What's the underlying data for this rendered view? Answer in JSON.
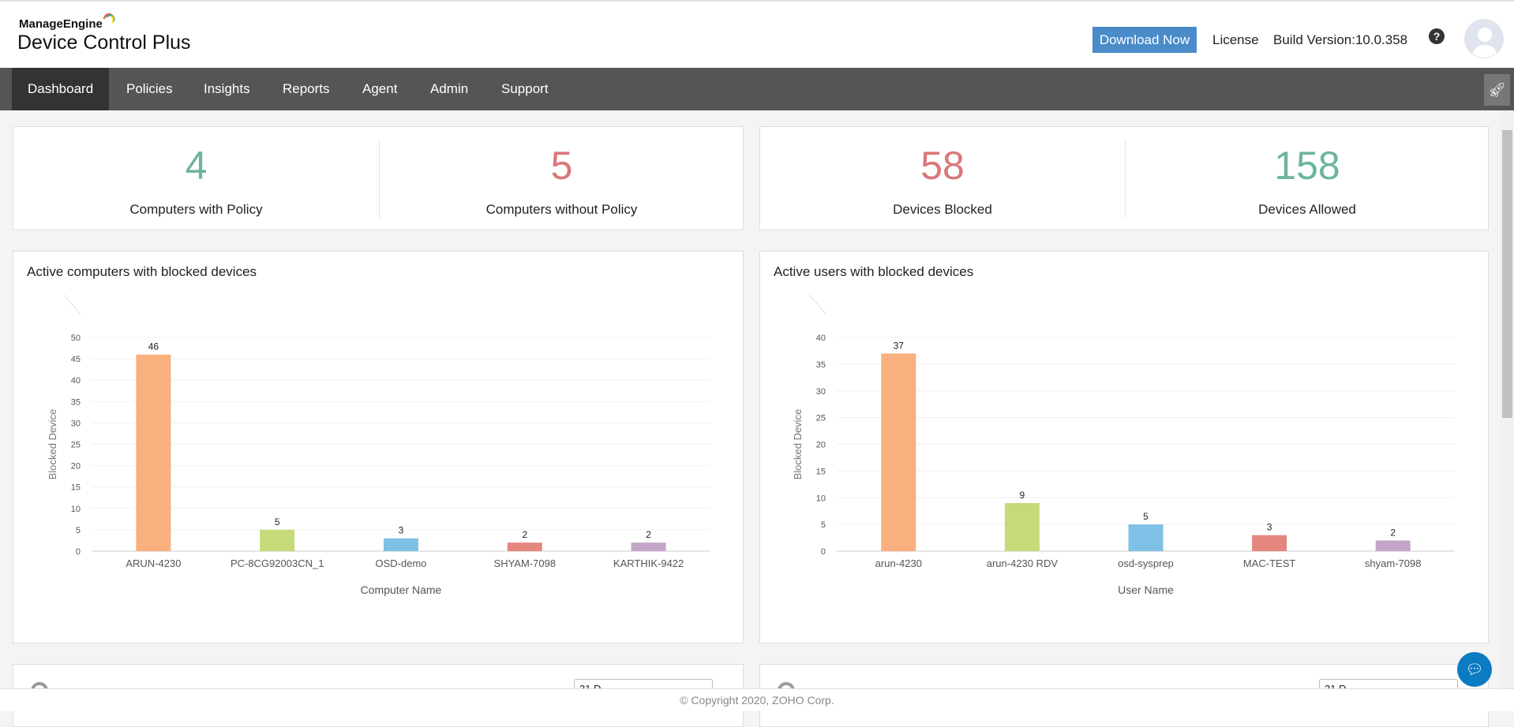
{
  "header": {
    "brand_top": "ManageEngine",
    "brand_product": "Device Control Plus",
    "download_label": "Download Now",
    "license_label": "License",
    "build_version": "Build Version:10.0.358",
    "help_icon": "question-circle-icon",
    "avatar_icon": "user-avatar-icon"
  },
  "nav": {
    "items": [
      {
        "label": "Dashboard",
        "active": true
      },
      {
        "label": "Policies"
      },
      {
        "label": "Insights"
      },
      {
        "label": "Reports"
      },
      {
        "label": "Agent"
      },
      {
        "label": "Admin"
      },
      {
        "label": "Support"
      }
    ],
    "rocket_icon": "rocket-icon"
  },
  "stats": [
    {
      "value": "4",
      "label": "Computers with Policy",
      "color": "#6db59a"
    },
    {
      "value": "5",
      "label": "Computers without Policy",
      "color": "#d9777a"
    },
    {
      "value": "58",
      "label": "Devices Blocked",
      "color": "#d9777a"
    },
    {
      "value": "158",
      "label": "Devices Allowed",
      "color": "#6db59a"
    }
  ],
  "chart_data": [
    {
      "type": "bar",
      "title": "Active computers with blocked devices",
      "xlabel": "Computer Name",
      "ylabel": "Blocked Device",
      "ylim": [
        0,
        50
      ],
      "yticks": [
        0,
        5,
        10,
        15,
        20,
        25,
        30,
        35,
        40,
        45,
        50
      ],
      "grid": true,
      "categories": [
        "ARUN-4230",
        "PC-8CG92003CN_1",
        "OSD-demo",
        "SHYAM-7098",
        "KARTHIK-9422"
      ],
      "values": [
        46,
        5,
        3,
        2,
        2
      ],
      "colors": [
        "#f9b07e",
        "#c5da78",
        "#7fc0e6",
        "#e4877f",
        "#c3a5c8"
      ]
    },
    {
      "type": "bar",
      "title": "Active users with blocked devices",
      "xlabel": "User Name",
      "ylabel": "Blocked Device",
      "ylim": [
        0,
        40
      ],
      "yticks": [
        0,
        5,
        10,
        15,
        20,
        25,
        30,
        35,
        40
      ],
      "grid": true,
      "categories": [
        "arun-4230",
        "arun-4230 RDV",
        "osd-sysprep",
        "MAC-TEST",
        "shyam-7098"
      ],
      "values": [
        37,
        9,
        5,
        3,
        2
      ],
      "colors": [
        "#f9b07e",
        "#c5da78",
        "#7fc0e6",
        "#e4877f",
        "#c3a5c8"
      ]
    }
  ],
  "bottom": {
    "select_left": "31 D",
    "select_right": "31 D"
  },
  "footer": {
    "copyright": "© Copyright 2020, ZOHO Corp."
  },
  "chat_icon": "chat-bubble-icon"
}
